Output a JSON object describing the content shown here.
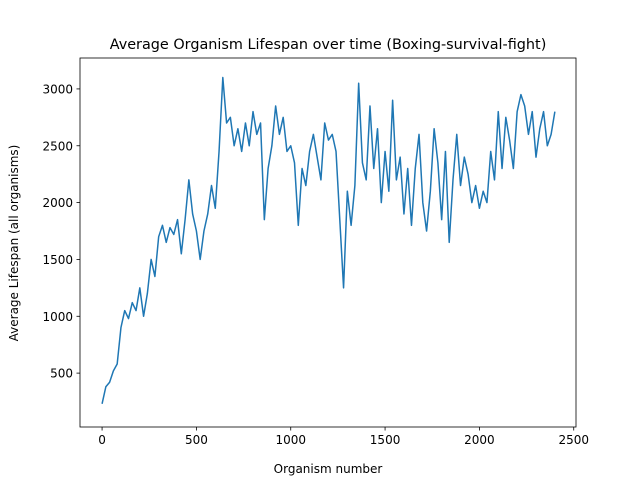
{
  "chart_data": {
    "type": "line",
    "title": "Average Organism Lifespan over time (Boxing-survival-fight)",
    "x_label": "Organism number",
    "y_label": "Average Lifespan (all organisms)",
    "x": [
      0,
      20,
      40,
      60,
      80,
      100,
      120,
      140,
      160,
      180,
      200,
      220,
      240,
      260,
      280,
      300,
      320,
      340,
      360,
      380,
      400,
      420,
      440,
      460,
      480,
      500,
      520,
      540,
      560,
      580,
      600,
      620,
      640,
      660,
      680,
      700,
      720,
      740,
      760,
      780,
      800,
      820,
      840,
      860,
      880,
      900,
      920,
      940,
      960,
      980,
      1000,
      1020,
      1040,
      1060,
      1080,
      1100,
      1120,
      1140,
      1160,
      1180,
      1200,
      1220,
      1240,
      1260,
      1280,
      1300,
      1320,
      1340,
      1360,
      1380,
      1400,
      1420,
      1440,
      1460,
      1480,
      1500,
      1520,
      1540,
      1560,
      1580,
      1600,
      1620,
      1640,
      1660,
      1680,
      1700,
      1720,
      1740,
      1760,
      1780,
      1800,
      1820,
      1840,
      1860,
      1880,
      1900,
      1920,
      1940,
      1960,
      1980,
      2000,
      2020,
      2040,
      2060,
      2080,
      2100,
      2120,
      2140,
      2160,
      2180,
      2200,
      2220,
      2240,
      2260,
      2280,
      2300,
      2320,
      2340,
      2360,
      2380,
      2400
    ],
    "series": [
      {
        "name": "lifespan",
        "color": "#1f77b4",
        "values": [
          230,
          380,
          420,
          520,
          580,
          900,
          1050,
          980,
          1120,
          1050,
          1250,
          1000,
          1200,
          1500,
          1350,
          1700,
          1800,
          1650,
          1780,
          1720,
          1850,
          1550,
          1850,
          2200,
          1900,
          1750,
          1500,
          1750,
          1900,
          2150,
          1950,
          2450,
          3100,
          2700,
          2750,
          2500,
          2650,
          2450,
          2700,
          2500,
          2800,
          2600,
          2700,
          1850,
          2300,
          2500,
          2850,
          2600,
          2750,
          2450,
          2500,
          2350,
          1800,
          2300,
          2150,
          2450,
          2600,
          2400,
          2200,
          2700,
          2550,
          2600,
          2450,
          1850,
          1250,
          2100,
          1800,
          2150,
          3050,
          2350,
          2200,
          2850,
          2300,
          2650,
          2000,
          2450,
          2100,
          2900,
          2200,
          2400,
          1900,
          2300,
          1800,
          2300,
          2600,
          2000,
          1750,
          2100,
          2650,
          2350,
          1850,
          2450,
          1650,
          2200,
          2600,
          2150,
          2400,
          2250,
          2000,
          2150,
          1950,
          2100,
          2000,
          2450,
          2200,
          2800,
          2300,
          2750,
          2550,
          2300,
          2800,
          2950,
          2850,
          2600,
          2800,
          2400,
          2650,
          2800,
          2500,
          2600,
          2800
        ]
      }
    ],
    "xlim": [
      -117,
      2512
    ],
    "ylim": [
      26,
      3272
    ],
    "xticks": [
      0,
      500,
      1000,
      1500,
      2000,
      2500
    ],
    "yticks": [
      500,
      1000,
      1500,
      2000,
      2500,
      3000
    ]
  }
}
